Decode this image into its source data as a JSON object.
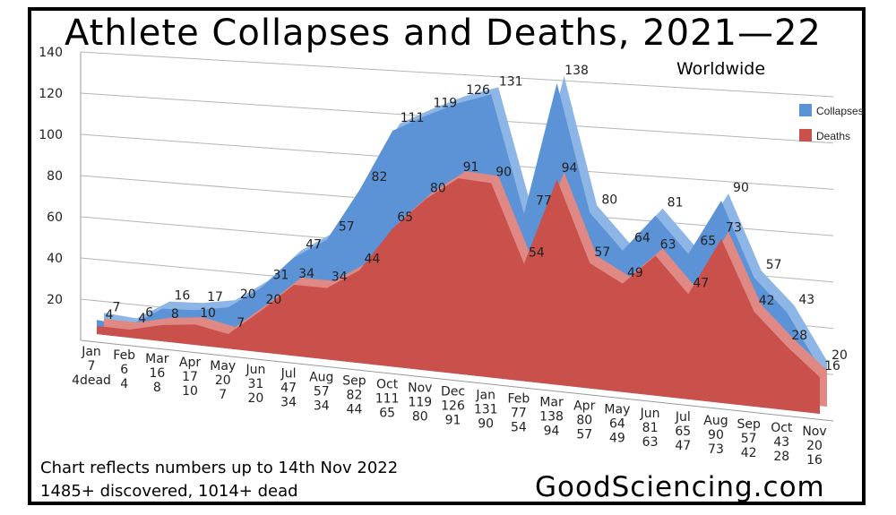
{
  "chart_data": {
    "type": "area",
    "title": "Athlete Collapses and Deaths, 2021—22",
    "subtitle": "Worldwide",
    "ylim": [
      0,
      140
    ],
    "yticks": [
      20,
      40,
      60,
      80,
      100,
      120,
      140
    ],
    "grid": true,
    "legend_position": "right",
    "categories": [
      "Jan",
      "Feb",
      "Mar",
      "Apr",
      "May",
      "Jun",
      "Jul",
      "Aug",
      "Sep",
      "Oct",
      "Nov",
      "Dec",
      "Jan",
      "Feb",
      "Mar",
      "Apr",
      "May",
      "Jun",
      "Jul",
      "Aug",
      "Sep",
      "Oct",
      "Nov"
    ],
    "series": [
      {
        "name": "Collapses",
        "color": "#5b93d6",
        "values": [
          7,
          6,
          16,
          17,
          20,
          31,
          47,
          57,
          82,
          111,
          119,
          126,
          131,
          77,
          138,
          80,
          64,
          81,
          65,
          90,
          57,
          43,
          20
        ]
      },
      {
        "name": "Deaths",
        "color": "#c9504b",
        "values": [
          4,
          4,
          8,
          10,
          7,
          20,
          34,
          34,
          44,
          65,
          80,
          91,
          90,
          54,
          94,
          57,
          49,
          63,
          47,
          73,
          42,
          28,
          16
        ]
      }
    ],
    "x_label_first_suffix": "dead",
    "data_label_first_collapses": "7",
    "data_label_first_deaths": "4"
  },
  "legend": {
    "collapses": "Collapses",
    "deaths": "Deaths"
  },
  "footer": {
    "note_1": "Chart reflects numbers up to 14th Nov 2022",
    "note_2": "1485+ discovered, 1014+ dead",
    "site": "GoodSciencing.com"
  }
}
